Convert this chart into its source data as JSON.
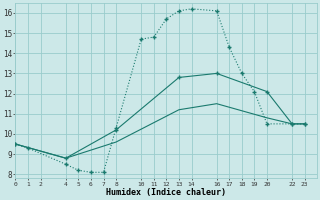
{
  "xlabel": "Humidex (Indice chaleur)",
  "bg_color": "#cce8e8",
  "grid_color": "#99cccc",
  "line_color": "#1a7a6e",
  "line1_x": [
    0,
    1,
    4,
    5,
    6,
    7,
    8,
    10,
    11,
    12,
    13,
    14,
    16,
    17,
    18,
    19,
    20,
    22,
    23
  ],
  "line1_y": [
    9.5,
    9.3,
    8.5,
    8.2,
    8.1,
    8.1,
    10.3,
    14.7,
    14.8,
    15.7,
    16.1,
    16.2,
    16.1,
    14.3,
    13.0,
    12.1,
    10.5,
    10.5,
    10.5
  ],
  "line2_x": [
    0,
    4,
    8,
    13,
    16,
    20,
    22,
    23
  ],
  "line2_y": [
    9.5,
    8.8,
    10.2,
    12.8,
    13.0,
    12.1,
    10.5,
    10.5
  ],
  "line3_x": [
    0,
    4,
    8,
    13,
    16,
    20,
    22,
    23
  ],
  "line3_y": [
    9.5,
    8.8,
    9.6,
    11.2,
    11.5,
    10.8,
    10.5,
    10.5
  ],
  "xlim": [
    0,
    24
  ],
  "ylim": [
    7.8,
    16.5
  ],
  "yticks": [
    8,
    9,
    10,
    11,
    12,
    13,
    14,
    15,
    16
  ],
  "xtick_positions": [
    0,
    1,
    2,
    4,
    5,
    6,
    7,
    8,
    10,
    11,
    12,
    13,
    14,
    16,
    17,
    18,
    19,
    20,
    22,
    23
  ],
  "xtick_labels": [
    "0",
    "1",
    "2",
    "4",
    "5",
    "6",
    "7",
    "8",
    "10",
    "11",
    "12",
    "13",
    "14",
    "16",
    "17",
    "18",
    "19",
    "20",
    "22",
    "23"
  ]
}
